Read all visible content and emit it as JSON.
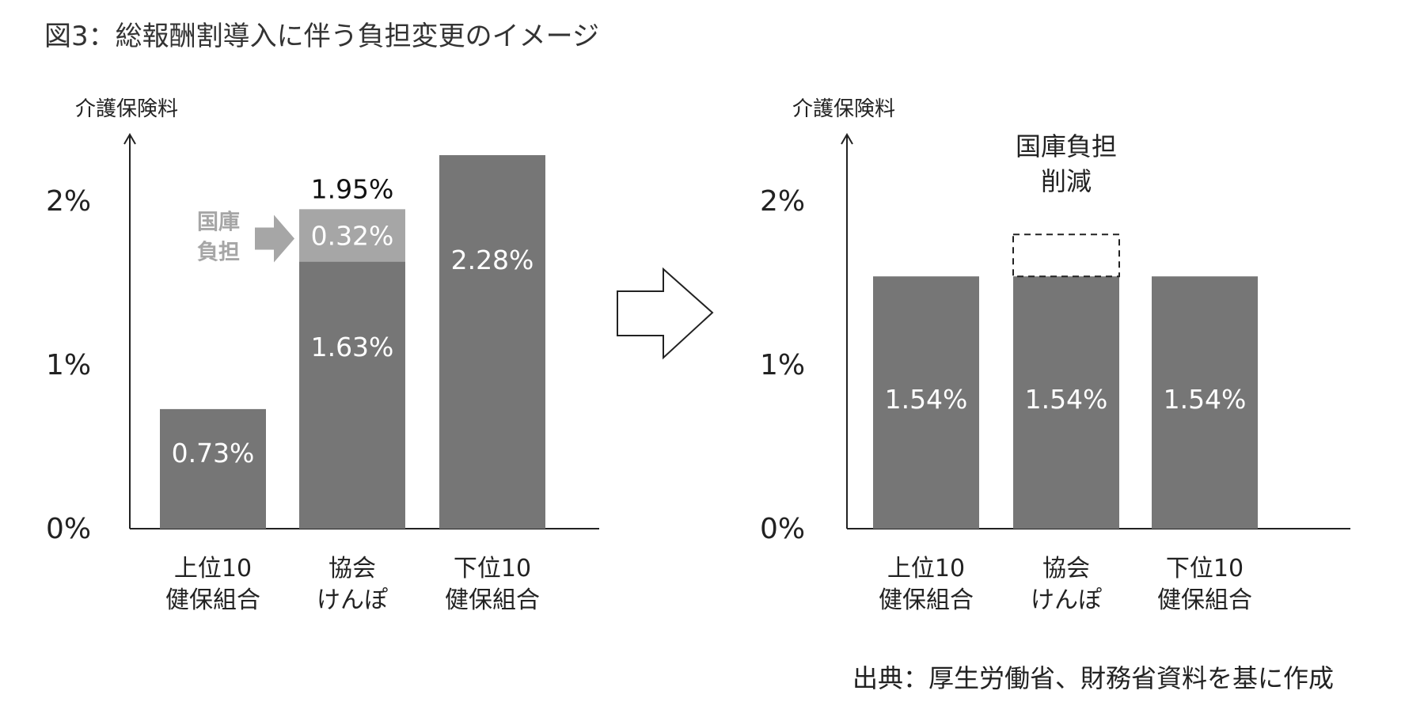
{
  "figure_title": "図3：総報酬割導入に伴う負担変更のイメージ",
  "source_note": "出典：厚生労働省、財務省資料を基に作成",
  "colors": {
    "bar": "#767676",
    "subsidy_segment": "#a6a6a6",
    "axis": "#222222",
    "bar_text": "#ffffff"
  },
  "chart_data": [
    {
      "type": "bar",
      "stacked": true,
      "title": "",
      "ylabel": "介護保険料",
      "xlabel": "",
      "ylim": [
        0,
        2.5
      ],
      "yticks": [
        {
          "value": 0,
          "label": "0%"
        },
        {
          "value": 1,
          "label": "1%"
        },
        {
          "value": 2,
          "label": "2%"
        }
      ],
      "categories": [
        {
          "line1": "上位10",
          "line2": "健保組合"
        },
        {
          "line1": "協会",
          "line2": "けんぽ"
        },
        {
          "line1": "下位10",
          "line2": "健保組合"
        }
      ],
      "series": [
        {
          "values": [
            0.73,
            1.63,
            2.28
          ],
          "labels": [
            "0.73%",
            "1.63%",
            "2.28%"
          ]
        },
        {
          "values": [
            0,
            0.32,
            0
          ],
          "labels": [
            "",
            "0.32%",
            ""
          ]
        }
      ],
      "totals": [
        null,
        1.95,
        null
      ],
      "total_labels": [
        "",
        "1.95%",
        ""
      ],
      "annotation": {
        "line1": "国庫",
        "line2": "負担",
        "target_category": 1
      }
    },
    {
      "type": "bar",
      "title": "",
      "ylabel": "介護保険料",
      "xlabel": "",
      "ylim": [
        0,
        2.5
      ],
      "yticks": [
        {
          "value": 0,
          "label": "0%"
        },
        {
          "value": 1,
          "label": "1%"
        },
        {
          "value": 2,
          "label": "2%"
        }
      ],
      "categories": [
        {
          "line1": "上位10",
          "line2": "健保組合"
        },
        {
          "line1": "協会",
          "line2": "けんぽ"
        },
        {
          "line1": "下位10",
          "line2": "健保組合"
        }
      ],
      "values": [
        1.54,
        1.54,
        1.54
      ],
      "labels": [
        "1.54%",
        "1.54%",
        "1.54%"
      ],
      "removed_segment": {
        "category": 1,
        "value": 0.32,
        "line1": "国庫負担",
        "line2": "削減"
      }
    }
  ]
}
